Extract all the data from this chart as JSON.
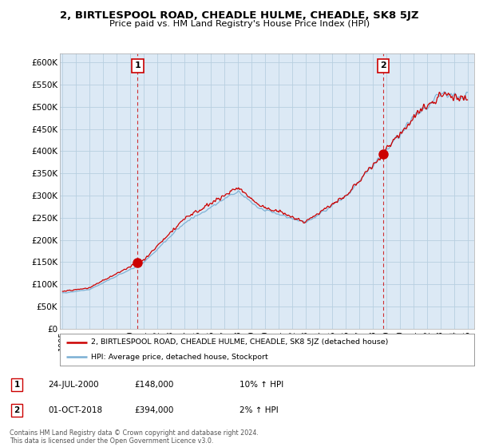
{
  "title": "2, BIRTLESPOOL ROAD, CHEADLE HULME, CHEADLE, SK8 5JZ",
  "subtitle": "Price paid vs. HM Land Registry's House Price Index (HPI)",
  "ylim": [
    0,
    620000
  ],
  "yticks": [
    0,
    50000,
    100000,
    150000,
    200000,
    250000,
    300000,
    350000,
    400000,
    450000,
    500000,
    550000,
    600000
  ],
  "ytick_labels": [
    "£0",
    "£50K",
    "£100K",
    "£150K",
    "£200K",
    "£250K",
    "£300K",
    "£350K",
    "£400K",
    "£450K",
    "£500K",
    "£550K",
    "£600K"
  ],
  "red_color": "#cc0000",
  "blue_color": "#7aafd4",
  "sale1_date": 2000.56,
  "sale1_price": 148000,
  "sale1_label": "1",
  "sale2_date": 2018.75,
  "sale2_price": 394000,
  "sale2_label": "2",
  "legend_line1": "2, BIRTLESPOOL ROAD, CHEADLE HULME, CHEADLE, SK8 5JZ (detached house)",
  "legend_line2": "HPI: Average price, detached house, Stockport",
  "table_row1": [
    "1",
    "24-JUL-2000",
    "£148,000",
    "10% ↑ HPI"
  ],
  "table_row2": [
    "2",
    "01-OCT-2018",
    "£394,000",
    "2% ↑ HPI"
  ],
  "footnote": "Contains HM Land Registry data © Crown copyright and database right 2024.\nThis data is licensed under the Open Government Licence v3.0.",
  "background_color": "#dce9f5",
  "grid_color": "#b8cfe0",
  "plot_bg": "#dce9f5"
}
